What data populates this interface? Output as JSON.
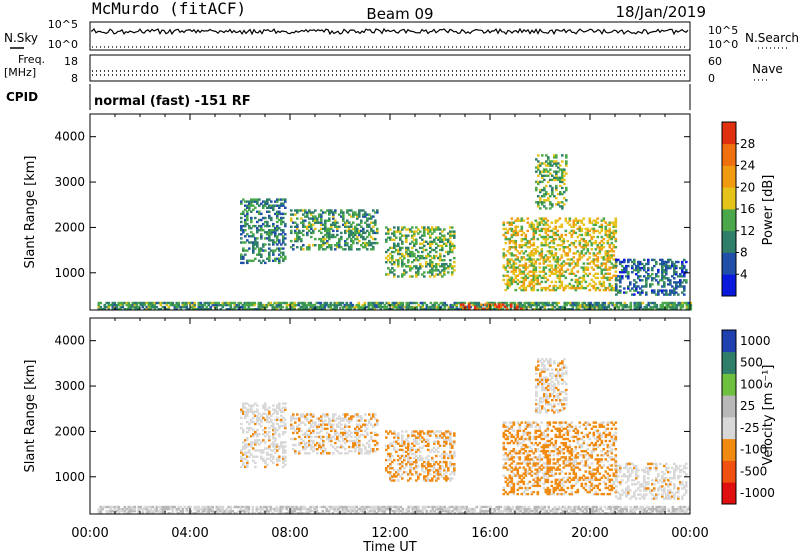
{
  "header": {
    "station": "McMurdo (fitACF)",
    "beam": "Beam 09",
    "date": "18/Jan/2019"
  },
  "side_labels": {
    "nsky": "N.Sky",
    "nsearch": "N.Search",
    "freq_line1": "Freq.",
    "freq_line2": "[MHz]",
    "nave": "Nave",
    "cpid": "CPID",
    "cpid_value": "normal (fast) -151 RF"
  },
  "small_axes": {
    "noise_left": [
      "10^5",
      "10^0"
    ],
    "noise_right": [
      "10^5",
      "10^0"
    ],
    "freq_left": [
      "18",
      "8"
    ],
    "nave_right": [
      "60",
      "0"
    ]
  },
  "colors": {
    "power": [
      "#0a1adc",
      "#1f4fa8",
      "#2f7e6a",
      "#4aa84a",
      "#e6c31a",
      "#f09a10",
      "#f07010",
      "#e03010"
    ],
    "velocity": [
      "#e01010",
      "#f05010",
      "#f08a10",
      "#d8d8d8",
      "#b8b8b8",
      "#70c040",
      "#2f7e6a",
      "#2040b0"
    ]
  },
  "chart_data": [
    {
      "type": "heatmap",
      "name": "power",
      "ylabel": "Slant Range [km]",
      "xlabel": "Time UT",
      "xlim_hours": [
        0,
        24
      ],
      "ylim": [
        180,
        4500
      ],
      "yticks": [
        1000,
        2000,
        3000,
        4000
      ],
      "xticklabels": [
        "00:00",
        "04:00",
        "08:00",
        "12:00",
        "16:00",
        "20:00",
        "00:00"
      ],
      "colorbar": {
        "label": "Power [dB]",
        "range": [
          0,
          32
        ],
        "ticks": [
          "4",
          "8",
          "12",
          "16",
          "20",
          "24",
          "28"
        ]
      },
      "echo_regions": [
        {
          "t": [
            0.3,
            24
          ],
          "r": [
            180,
            320
          ],
          "value": 12
        },
        {
          "t": [
            14.8,
            17.3
          ],
          "r": [
            190,
            320
          ],
          "value": 28
        },
        {
          "t": [
            6.0,
            7.8
          ],
          "r": [
            1200,
            2600
          ],
          "value": 10
        },
        {
          "t": [
            8.0,
            11.5
          ],
          "r": [
            1500,
            2400
          ],
          "value": 12
        },
        {
          "t": [
            11.8,
            14.6
          ],
          "r": [
            900,
            2000
          ],
          "value": 14
        },
        {
          "t": [
            16.5,
            21.0
          ],
          "r": [
            600,
            2200
          ],
          "value": 18
        },
        {
          "t": [
            17.8,
            19.0
          ],
          "r": [
            2400,
            3600
          ],
          "value": 14
        },
        {
          "t": [
            21.0,
            23.8
          ],
          "r": [
            500,
            1300
          ],
          "value": 8
        }
      ]
    },
    {
      "type": "heatmap",
      "name": "velocity",
      "ylabel": "Slant Range [km]",
      "xlabel": "Time UT",
      "xlim_hours": [
        0,
        24
      ],
      "ylim": [
        180,
        4500
      ],
      "yticks": [
        1000,
        2000,
        3000,
        4000
      ],
      "xticklabels": [
        "00:00",
        "04:00",
        "08:00",
        "12:00",
        "16:00",
        "20:00",
        "00:00"
      ],
      "colorbar": {
        "label": "Velocity [m s⁻¹]",
        "range": [
          -1000,
          1000
        ],
        "ticks": [
          "1000",
          "500",
          "100",
          "25",
          "-25",
          "-100",
          "-500",
          "-1000"
        ]
      },
      "echo_regions": [
        {
          "t": [
            0.3,
            24
          ],
          "r": [
            180,
            320
          ],
          "value": 0
        },
        {
          "t": [
            6.0,
            7.8
          ],
          "r": [
            1200,
            2600
          ],
          "value": -150
        },
        {
          "t": [
            8.0,
            11.5
          ],
          "r": [
            1500,
            2400
          ],
          "value": -200
        },
        {
          "t": [
            11.8,
            14.6
          ],
          "r": [
            900,
            2000
          ],
          "value": -250
        },
        {
          "t": [
            16.5,
            21.0
          ],
          "r": [
            600,
            2200
          ],
          "value": -300
        },
        {
          "t": [
            17.8,
            19.0
          ],
          "r": [
            2400,
            3600
          ],
          "value": -200
        },
        {
          "t": [
            21.0,
            23.8
          ],
          "r": [
            500,
            1300
          ],
          "value": -150
        }
      ]
    }
  ]
}
